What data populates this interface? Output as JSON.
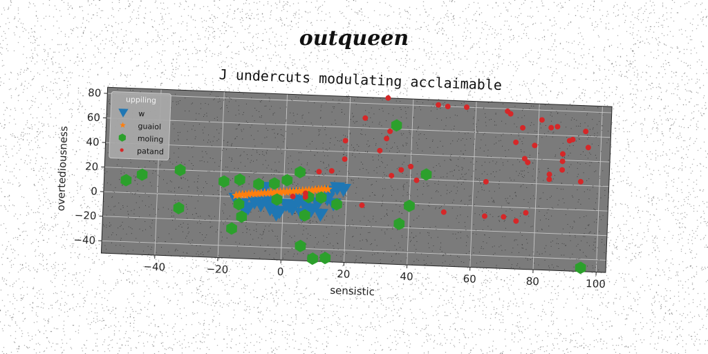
{
  "super_title": "outqueen",
  "chart_data": {
    "type": "scatter",
    "title": "J undercuts modulating acclaimable",
    "xlabel": "sensistic",
    "ylabel": "overtediousness",
    "xlim": [
      -57,
      103
    ],
    "ylim": [
      -50,
      85
    ],
    "xticks": [
      -40,
      -20,
      0,
      20,
      40,
      60,
      80,
      100
    ],
    "yticks": [
      -40,
      -20,
      0,
      20,
      40,
      60,
      80
    ],
    "grid": true,
    "legend_title": "uppiling",
    "legend_position": "upper-left",
    "series": [
      {
        "name": "w",
        "marker": "triangle-down",
        "color": "#1f77b4",
        "points": [
          [
            -15,
            -2
          ],
          [
            -13,
            -6
          ],
          [
            -11,
            -9
          ],
          [
            -9,
            -4
          ],
          [
            -7,
            -6
          ],
          [
            -5,
            -3
          ],
          [
            -3,
            -7
          ],
          [
            -1,
            -11
          ],
          [
            1,
            -5
          ],
          [
            3,
            -8
          ],
          [
            5,
            -2
          ],
          [
            7,
            -5
          ],
          [
            9,
            -9
          ],
          [
            11,
            -3
          ],
          [
            13,
            4
          ],
          [
            15,
            7
          ],
          [
            17,
            10
          ],
          [
            19,
            9
          ],
          [
            -12,
            -11
          ],
          [
            -2,
            -13
          ],
          [
            6,
            -12
          ],
          [
            12,
            -12
          ],
          [
            -6,
            8
          ],
          [
            -4,
            -9
          ],
          [
            2,
            -6
          ],
          [
            4,
            4
          ],
          [
            8,
            -8
          ],
          [
            14,
            1
          ],
          [
            16,
            -3
          ]
        ]
      },
      {
        "name": "guaiol",
        "marker": "star",
        "color": "#ff7f0e",
        "points": [
          [
            -15,
            1
          ],
          [
            -14,
            1.5
          ],
          [
            -13,
            2
          ],
          [
            -12,
            2
          ],
          [
            -11,
            2.5
          ],
          [
            -10,
            3
          ],
          [
            -9,
            3
          ],
          [
            -8,
            3.5
          ],
          [
            -7,
            3.5
          ],
          [
            -6,
            4
          ],
          [
            -5,
            4
          ],
          [
            -4,
            4.5
          ],
          [
            -3,
            4.5
          ],
          [
            -2,
            5
          ],
          [
            -1,
            5
          ],
          [
            0,
            5.5
          ],
          [
            1,
            5.5
          ],
          [
            2,
            6
          ],
          [
            3,
            6
          ],
          [
            4,
            6.5
          ],
          [
            5,
            6.5
          ],
          [
            6,
            7
          ],
          [
            7,
            7
          ],
          [
            8,
            7.5
          ],
          [
            9,
            7.5
          ],
          [
            10,
            8
          ],
          [
            11,
            8.5
          ],
          [
            12,
            8.5
          ],
          [
            13,
            9
          ],
          [
            14,
            9
          ]
        ]
      },
      {
        "name": "moling",
        "marker": "hexagon",
        "color": "#2ca02c",
        "points": [
          [
            -50,
            10
          ],
          [
            -45,
            15
          ],
          [
            -33,
            20
          ],
          [
            -33,
            -11
          ],
          [
            -19,
            12
          ],
          [
            -14,
            14
          ],
          [
            -14,
            -6
          ],
          [
            -13,
            -16
          ],
          [
            -16,
            -26
          ],
          [
            -8,
            11
          ],
          [
            -3,
            12
          ],
          [
            -2,
            -1
          ],
          [
            1,
            15
          ],
          [
            5,
            22
          ],
          [
            7,
            -13
          ],
          [
            8,
            2
          ],
          [
            12,
            2
          ],
          [
            17,
            -3
          ],
          [
            6,
            -38
          ],
          [
            10,
            -48
          ],
          [
            14,
            -47
          ],
          [
            35,
            63
          ],
          [
            40,
            -2
          ],
          [
            45,
            24
          ],
          [
            37,
            -17
          ],
          [
            95,
            -47
          ]
        ]
      },
      {
        "name": "patand",
        "marker": "circle",
        "color": "#d62728",
        "points": [
          [
            32,
            85
          ],
          [
            48,
            81
          ],
          [
            51,
            80
          ],
          [
            57,
            80
          ],
          [
            70,
            78
          ],
          [
            71,
            76
          ],
          [
            81,
            72
          ],
          [
            84,
            66
          ],
          [
            86,
            67
          ],
          [
            95,
            64
          ],
          [
            25,
            68
          ],
          [
            30,
            42
          ],
          [
            32,
            52
          ],
          [
            33,
            58
          ],
          [
            37,
            27
          ],
          [
            19,
            49
          ],
          [
            19,
            34
          ],
          [
            15,
            24
          ],
          [
            11,
            23
          ],
          [
            40,
            30
          ],
          [
            42,
            19
          ],
          [
            34,
            22
          ],
          [
            25,
            -3
          ],
          [
            51,
            -6
          ],
          [
            64,
            -8
          ],
          [
            70,
            -8
          ],
          [
            74,
            -11
          ],
          [
            77,
            -4
          ],
          [
            64,
            20
          ],
          [
            84,
            24
          ],
          [
            84,
            28
          ],
          [
            88,
            32
          ],
          [
            94,
            23
          ],
          [
            73,
            53
          ],
          [
            75,
            65
          ],
          [
            79,
            51
          ],
          [
            76,
            40
          ],
          [
            77,
            37
          ],
          [
            88,
            45
          ],
          [
            88,
            39
          ],
          [
            90,
            56
          ],
          [
            91,
            57
          ],
          [
            96,
            51
          ],
          [
            7,
            5
          ],
          [
            7,
            2
          ],
          [
            3,
            2
          ]
        ]
      }
    ]
  }
}
